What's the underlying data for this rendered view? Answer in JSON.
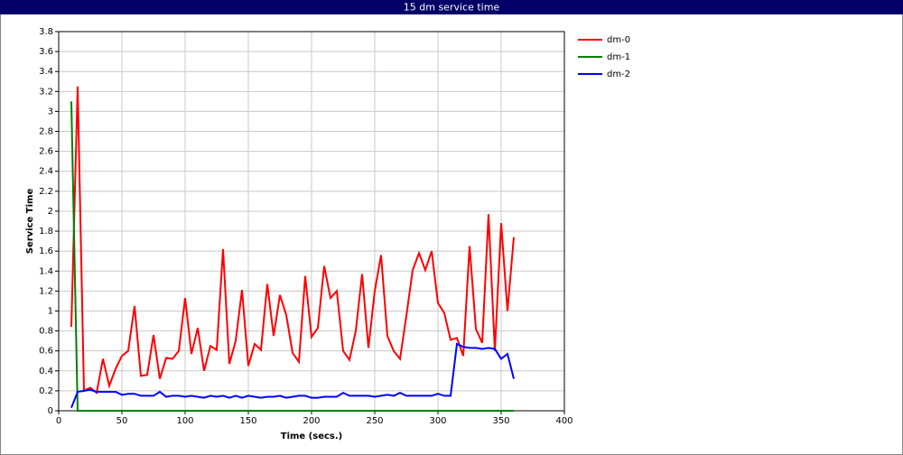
{
  "chart_data": {
    "type": "line",
    "title": "15 dm service time",
    "x_label": "Time (secs.)",
    "y_label": "Service Time",
    "x": [
      10,
      15,
      20,
      25,
      30,
      35,
      40,
      45,
      50,
      55,
      60,
      65,
      70,
      75,
      80,
      85,
      90,
      95,
      100,
      105,
      110,
      115,
      120,
      125,
      130,
      135,
      140,
      145,
      150,
      155,
      160,
      165,
      170,
      175,
      180,
      185,
      190,
      195,
      200,
      205,
      210,
      215,
      220,
      225,
      230,
      235,
      240,
      245,
      250,
      255,
      260,
      265,
      270,
      275,
      280,
      285,
      290,
      295,
      300,
      305,
      310,
      315,
      320,
      325,
      330,
      335,
      340,
      345,
      350,
      355,
      360
    ],
    "series": [
      {
        "name": "dm-0",
        "color": "#ff0000",
        "values": [
          0.84,
          3.25,
          0.2,
          0.23,
          0.18,
          0.52,
          0.25,
          0.42,
          0.55,
          0.6,
          1.05,
          0.35,
          0.36,
          0.76,
          0.32,
          0.53,
          0.52,
          0.6,
          1.13,
          0.57,
          0.83,
          0.4,
          0.65,
          0.61,
          1.62,
          0.47,
          0.7,
          1.21,
          0.45,
          0.67,
          0.61,
          1.27,
          0.75,
          1.16,
          0.96,
          0.58,
          0.49,
          1.35,
          0.74,
          0.83,
          1.45,
          1.13,
          1.2,
          0.6,
          0.51,
          0.8,
          1.37,
          0.63,
          1.2,
          1.56,
          0.75,
          0.6,
          0.52,
          0.95,
          1.41,
          1.58,
          1.41,
          1.6,
          1.08,
          0.98,
          0.71,
          0.73,
          0.55,
          1.65,
          0.82,
          0.68,
          1.97,
          0.6,
          1.88,
          1.0,
          1.74
        ]
      },
      {
        "name": "dm-1",
        "color": "#008000",
        "values": [
          3.1,
          0,
          0,
          0,
          0,
          0,
          0,
          0,
          0,
          0,
          0,
          0,
          0,
          0,
          0,
          0,
          0,
          0,
          0,
          0,
          0,
          0,
          0,
          0,
          0,
          0,
          0,
          0,
          0,
          0,
          0,
          0,
          0,
          0,
          0,
          0,
          0,
          0,
          0,
          0,
          0,
          0,
          0,
          0,
          0,
          0,
          0,
          0,
          0,
          0,
          0,
          0,
          0,
          0,
          0,
          0,
          0,
          0,
          0,
          0,
          0,
          0,
          0,
          0,
          0,
          0,
          0,
          0,
          0,
          0,
          0
        ]
      },
      {
        "name": "dm-2",
        "color": "#0000ff",
        "values": [
          0.03,
          0.19,
          0.2,
          0.21,
          0.19,
          0.19,
          0.19,
          0.19,
          0.16,
          0.17,
          0.17,
          0.15,
          0.15,
          0.15,
          0.19,
          0.14,
          0.15,
          0.15,
          0.14,
          0.15,
          0.14,
          0.13,
          0.15,
          0.14,
          0.15,
          0.13,
          0.15,
          0.13,
          0.15,
          0.14,
          0.13,
          0.14,
          0.14,
          0.15,
          0.13,
          0.14,
          0.15,
          0.15,
          0.13,
          0.13,
          0.14,
          0.14,
          0.14,
          0.18,
          0.15,
          0.15,
          0.15,
          0.15,
          0.14,
          0.15,
          0.16,
          0.15,
          0.18,
          0.15,
          0.15,
          0.15,
          0.15,
          0.15,
          0.17,
          0.15,
          0.15,
          0.67,
          0.64,
          0.63,
          0.63,
          0.62,
          0.63,
          0.62,
          0.52,
          0.57,
          0.32
        ]
      }
    ],
    "xlim": [
      0,
      400
    ],
    "xticks": [
      0,
      50,
      100,
      150,
      200,
      250,
      300,
      350,
      400
    ],
    "ylim": [
      0,
      3.8
    ],
    "yticks": [
      0,
      0.2,
      0.4,
      0.6,
      0.8,
      1,
      1.2,
      1.4,
      1.6,
      1.8,
      2,
      2.2,
      2.4,
      2.6,
      2.8,
      3,
      3.2,
      3.4,
      3.6,
      3.8
    ],
    "grid": true,
    "legend": "right"
  }
}
